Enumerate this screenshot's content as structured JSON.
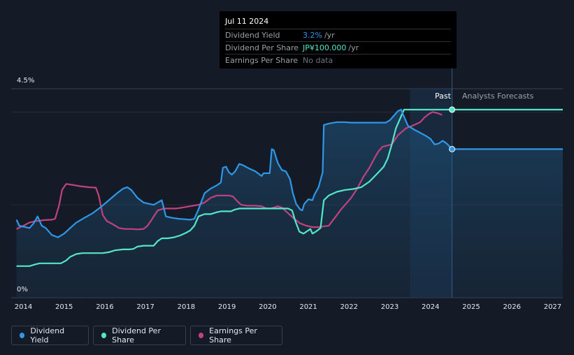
{
  "tooltip": {
    "date": "Jul 11 2024",
    "rows": [
      {
        "label": "Dividend Yield",
        "value": "3.2%",
        "unit": "/yr"
      },
      {
        "label": "Dividend Per Share",
        "value": "JP¥100.000",
        "unit": "/yr"
      },
      {
        "label": "Earnings Per Share",
        "value": "No data",
        "unit": ""
      }
    ]
  },
  "labels": {
    "past": "Past",
    "forecast": "Analysts Forecasts"
  },
  "legend": [
    {
      "label": "Dividend Yield",
      "color": "#2f97e8"
    },
    {
      "label": "Dividend Per Share",
      "color": "#55e6c8"
    },
    {
      "label": "Earnings Per Share",
      "color": "#c2417f"
    }
  ],
  "chart_data": {
    "type": "line",
    "y_tick_labels": [
      "4.5%",
      "0%"
    ],
    "ylim": [
      0,
      4.5
    ],
    "xlim": [
      2013.7,
      2027.25
    ],
    "x_ticks": [
      2014,
      2015,
      2016,
      2017,
      2018,
      2019,
      2020,
      2021,
      2022,
      2023,
      2024,
      2025,
      2026,
      2027
    ],
    "x_tick_labels": [
      "2014",
      "2015",
      "2016",
      "2017",
      "2018",
      "2019",
      "2020",
      "2021",
      "2022",
      "2023",
      "2024",
      "2025",
      "2026",
      "2027"
    ],
    "past_end": 2024.53,
    "series": [
      {
        "name": "Dividend Yield",
        "color": "#2f97e8",
        "unit": "%",
        "points": [
          [
            2013.83,
            1.68
          ],
          [
            2013.9,
            1.55
          ],
          [
            2014.05,
            1.52
          ],
          [
            2014.15,
            1.5
          ],
          [
            2014.25,
            1.6
          ],
          [
            2014.35,
            1.75
          ],
          [
            2014.45,
            1.55
          ],
          [
            2014.55,
            1.5
          ],
          [
            2014.7,
            1.35
          ],
          [
            2014.85,
            1.3
          ],
          [
            2015.0,
            1.38
          ],
          [
            2015.15,
            1.5
          ],
          [
            2015.3,
            1.62
          ],
          [
            2015.5,
            1.72
          ],
          [
            2015.7,
            1.82
          ],
          [
            2015.9,
            1.95
          ],
          [
            2016.1,
            2.1
          ],
          [
            2016.3,
            2.25
          ],
          [
            2016.45,
            2.35
          ],
          [
            2016.55,
            2.38
          ],
          [
            2016.65,
            2.32
          ],
          [
            2016.8,
            2.15
          ],
          [
            2016.95,
            2.05
          ],
          [
            2017.1,
            2.02
          ],
          [
            2017.2,
            2.0
          ],
          [
            2017.3,
            2.05
          ],
          [
            2017.4,
            2.1
          ],
          [
            2017.5,
            1.75
          ],
          [
            2017.65,
            1.72
          ],
          [
            2017.8,
            1.7
          ],
          [
            2017.95,
            1.69
          ],
          [
            2018.1,
            1.68
          ],
          [
            2018.2,
            1.7
          ],
          [
            2018.3,
            1.9
          ],
          [
            2018.45,
            2.25
          ],
          [
            2018.6,
            2.35
          ],
          [
            2018.75,
            2.42
          ],
          [
            2018.85,
            2.48
          ],
          [
            2018.9,
            2.8
          ],
          [
            2018.98,
            2.82
          ],
          [
            2019.05,
            2.7
          ],
          [
            2019.12,
            2.65
          ],
          [
            2019.2,
            2.72
          ],
          [
            2019.3,
            2.88
          ],
          [
            2019.4,
            2.85
          ],
          [
            2019.55,
            2.78
          ],
          [
            2019.7,
            2.72
          ],
          [
            2019.85,
            2.62
          ],
          [
            2019.9,
            2.68
          ],
          [
            2020.05,
            2.68
          ],
          [
            2020.1,
            3.2
          ],
          [
            2020.15,
            3.18
          ],
          [
            2020.25,
            2.9
          ],
          [
            2020.35,
            2.75
          ],
          [
            2020.45,
            2.72
          ],
          [
            2020.55,
            2.55
          ],
          [
            2020.62,
            2.25
          ],
          [
            2020.7,
            2.02
          ],
          [
            2020.8,
            1.9
          ],
          [
            2020.85,
            1.88
          ],
          [
            2020.9,
            2.02
          ],
          [
            2021.0,
            2.12
          ],
          [
            2021.1,
            2.1
          ],
          [
            2021.15,
            2.22
          ],
          [
            2021.25,
            2.38
          ],
          [
            2021.35,
            2.7
          ],
          [
            2021.38,
            3.72
          ],
          [
            2021.5,
            3.75
          ],
          [
            2021.7,
            3.78
          ],
          [
            2021.9,
            3.78
          ],
          [
            2022.05,
            3.77
          ],
          [
            2022.3,
            3.77
          ],
          [
            2022.6,
            3.77
          ],
          [
            2022.9,
            3.77
          ],
          [
            2023.0,
            3.82
          ],
          [
            2023.1,
            3.92
          ],
          [
            2023.2,
            4.02
          ],
          [
            2023.28,
            4.05
          ],
          [
            2023.35,
            3.9
          ],
          [
            2023.45,
            3.7
          ],
          [
            2023.6,
            3.62
          ],
          [
            2023.75,
            3.55
          ],
          [
            2023.9,
            3.48
          ],
          [
            2024.0,
            3.42
          ],
          [
            2024.1,
            3.3
          ],
          [
            2024.2,
            3.32
          ],
          [
            2024.3,
            3.38
          ],
          [
            2024.4,
            3.32
          ],
          [
            2024.53,
            3.2
          ]
        ],
        "forecast": [
          [
            2024.53,
            3.2
          ],
          [
            2027.25,
            3.2
          ]
        ]
      },
      {
        "name": "Dividend Per Share",
        "color": "#55e6c8",
        "unit": "JP¥",
        "points": [
          [
            2013.83,
            0.68
          ],
          [
            2014.0,
            0.68
          ],
          [
            2014.15,
            0.68
          ],
          [
            2014.3,
            0.72
          ],
          [
            2014.4,
            0.74
          ],
          [
            2014.6,
            0.74
          ],
          [
            2014.8,
            0.74
          ],
          [
            2014.92,
            0.74
          ],
          [
            2015.05,
            0.8
          ],
          [
            2015.15,
            0.88
          ],
          [
            2015.3,
            0.94
          ],
          [
            2015.45,
            0.96
          ],
          [
            2015.6,
            0.96
          ],
          [
            2015.8,
            0.96
          ],
          [
            2015.95,
            0.96
          ],
          [
            2016.1,
            0.98
          ],
          [
            2016.25,
            1.02
          ],
          [
            2016.45,
            1.04
          ],
          [
            2016.6,
            1.04
          ],
          [
            2016.7,
            1.05
          ],
          [
            2016.8,
            1.1
          ],
          [
            2016.95,
            1.12
          ],
          [
            2017.1,
            1.12
          ],
          [
            2017.2,
            1.12
          ],
          [
            2017.3,
            1.22
          ],
          [
            2017.4,
            1.28
          ],
          [
            2017.55,
            1.28
          ],
          [
            2017.7,
            1.3
          ],
          [
            2017.85,
            1.34
          ],
          [
            2018.0,
            1.4
          ],
          [
            2018.1,
            1.45
          ],
          [
            2018.2,
            1.55
          ],
          [
            2018.3,
            1.75
          ],
          [
            2018.45,
            1.8
          ],
          [
            2018.6,
            1.8
          ],
          [
            2018.75,
            1.84
          ],
          [
            2018.85,
            1.86
          ],
          [
            2019.0,
            1.86
          ],
          [
            2019.1,
            1.86
          ],
          [
            2019.2,
            1.9
          ],
          [
            2019.3,
            1.92
          ],
          [
            2019.5,
            1.92
          ],
          [
            2019.7,
            1.92
          ],
          [
            2019.9,
            1.92
          ],
          [
            2020.1,
            1.92
          ],
          [
            2020.3,
            1.92
          ],
          [
            2020.5,
            1.92
          ],
          [
            2020.6,
            1.88
          ],
          [
            2020.68,
            1.65
          ],
          [
            2020.78,
            1.42
          ],
          [
            2020.88,
            1.38
          ],
          [
            2020.95,
            1.42
          ],
          [
            2021.05,
            1.48
          ],
          [
            2021.1,
            1.38
          ],
          [
            2021.18,
            1.42
          ],
          [
            2021.3,
            1.5
          ],
          [
            2021.38,
            2.1
          ],
          [
            2021.5,
            2.2
          ],
          [
            2021.7,
            2.28
          ],
          [
            2021.9,
            2.32
          ],
          [
            2022.1,
            2.34
          ],
          [
            2022.3,
            2.38
          ],
          [
            2022.5,
            2.5
          ],
          [
            2022.7,
            2.68
          ],
          [
            2022.85,
            2.82
          ],
          [
            2022.95,
            3.0
          ],
          [
            2023.05,
            3.3
          ],
          [
            2023.15,
            3.65
          ],
          [
            2023.25,
            3.85
          ],
          [
            2023.35,
            4.05
          ],
          [
            2023.5,
            4.05
          ],
          [
            2023.8,
            4.05
          ],
          [
            2024.1,
            4.05
          ],
          [
            2024.35,
            4.05
          ],
          [
            2024.53,
            4.05
          ]
        ],
        "forecast": [
          [
            2024.53,
            4.05
          ],
          [
            2027.25,
            4.05
          ]
        ]
      },
      {
        "name": "Earnings Per Share",
        "color": "#c2417f",
        "unit": "JP¥",
        "points": [
          [
            2013.83,
            1.48
          ],
          [
            2014.0,
            1.55
          ],
          [
            2014.15,
            1.62
          ],
          [
            2014.3,
            1.65
          ],
          [
            2014.5,
            1.67
          ],
          [
            2014.7,
            1.68
          ],
          [
            2014.78,
            1.7
          ],
          [
            2014.88,
            2.0
          ],
          [
            2014.95,
            2.32
          ],
          [
            2015.05,
            2.45
          ],
          [
            2015.2,
            2.43
          ],
          [
            2015.4,
            2.4
          ],
          [
            2015.6,
            2.38
          ],
          [
            2015.78,
            2.37
          ],
          [
            2015.85,
            2.2
          ],
          [
            2015.95,
            1.78
          ],
          [
            2016.05,
            1.65
          ],
          [
            2016.2,
            1.58
          ],
          [
            2016.35,
            1.5
          ],
          [
            2016.5,
            1.48
          ],
          [
            2016.65,
            1.48
          ],
          [
            2016.8,
            1.47
          ],
          [
            2016.95,
            1.48
          ],
          [
            2017.05,
            1.55
          ],
          [
            2017.15,
            1.68
          ],
          [
            2017.3,
            1.88
          ],
          [
            2017.45,
            1.92
          ],
          [
            2017.6,
            1.92
          ],
          [
            2017.75,
            1.92
          ],
          [
            2017.9,
            1.94
          ],
          [
            2018.1,
            1.97
          ],
          [
            2018.3,
            2.0
          ],
          [
            2018.45,
            2.05
          ],
          [
            2018.6,
            2.15
          ],
          [
            2018.75,
            2.2
          ],
          [
            2018.9,
            2.2
          ],
          [
            2019.05,
            2.2
          ],
          [
            2019.15,
            2.18
          ],
          [
            2019.25,
            2.08
          ],
          [
            2019.35,
            2.0
          ],
          [
            2019.5,
            1.98
          ],
          [
            2019.7,
            1.98
          ],
          [
            2019.85,
            1.97
          ],
          [
            2019.95,
            1.93
          ],
          [
            2020.05,
            1.92
          ],
          [
            2020.15,
            1.94
          ],
          [
            2020.25,
            1.97
          ],
          [
            2020.35,
            1.94
          ],
          [
            2020.5,
            1.82
          ],
          [
            2020.65,
            1.7
          ],
          [
            2020.8,
            1.6
          ],
          [
            2020.95,
            1.55
          ],
          [
            2021.1,
            1.52
          ],
          [
            2021.25,
            1.52
          ],
          [
            2021.4,
            1.54
          ],
          [
            2021.5,
            1.55
          ],
          [
            2021.65,
            1.72
          ],
          [
            2021.8,
            1.9
          ],
          [
            2021.95,
            2.05
          ],
          [
            2022.05,
            2.15
          ],
          [
            2022.2,
            2.35
          ],
          [
            2022.35,
            2.6
          ],
          [
            2022.5,
            2.8
          ],
          [
            2022.62,
            3.0
          ],
          [
            2022.72,
            3.15
          ],
          [
            2022.82,
            3.25
          ],
          [
            2022.95,
            3.28
          ],
          [
            2023.05,
            3.3
          ],
          [
            2023.2,
            3.5
          ],
          [
            2023.4,
            3.65
          ],
          [
            2023.6,
            3.72
          ],
          [
            2023.75,
            3.78
          ],
          [
            2023.85,
            3.88
          ],
          [
            2023.95,
            3.95
          ],
          [
            2024.05,
            4.0
          ],
          [
            2024.15,
            3.98
          ],
          [
            2024.25,
            3.95
          ],
          [
            2024.28,
            3.93
          ]
        ],
        "forecast": []
      }
    ]
  }
}
